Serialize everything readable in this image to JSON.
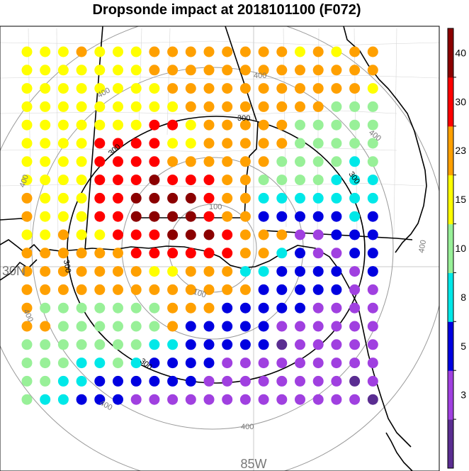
{
  "chart_data": {
    "type": "heatmap",
    "title": "Dropsonde impact at 2018101100 (F072)",
    "grid_columns": 20,
    "grid_rows": 20,
    "levels": [
      "3",
      "5",
      "8",
      "10",
      "15",
      "23",
      "30",
      "40"
    ],
    "colorbar_colors": [
      "#5a2d91",
      "#a040e0",
      "#0000e0",
      "#00e8e8",
      "#98f098",
      "#ffff00",
      "#ffa000",
      "#ff0000",
      "#8b0000"
    ],
    "distance_contours": [
      "100",
      "200",
      "300",
      "400"
    ],
    "highlighted_contour": "300",
    "axis_labels": {
      "lon": "85W",
      "lat": "30N"
    },
    "values": [
      [
        5,
        5,
        5,
        6,
        5,
        5,
        5,
        6,
        6,
        6,
        6,
        6,
        6,
        6,
        6,
        5,
        6,
        5,
        6,
        6
      ],
      [
        5,
        5,
        5,
        5,
        5,
        5,
        5,
        6,
        6,
        6,
        6,
        6,
        6,
        6,
        6,
        6,
        6,
        6,
        6,
        6
      ],
      [
        5,
        5,
        5,
        5,
        5,
        5,
        5,
        5,
        6,
        6,
        6,
        6,
        6,
        6,
        6,
        6,
        6,
        6,
        6,
        5
      ],
      [
        5,
        5,
        5,
        5,
        5,
        5,
        5,
        5,
        5,
        6,
        6,
        6,
        6,
        6,
        6,
        6,
        6,
        4,
        4,
        4
      ],
      [
        5,
        5,
        5,
        5,
        5,
        5,
        5,
        7,
        7,
        5,
        6,
        6,
        6,
        6,
        6,
        4,
        4,
        4,
        4,
        4
      ],
      [
        5,
        5,
        5,
        5,
        7,
        7,
        7,
        7,
        5,
        5,
        6,
        6,
        6,
        6,
        6,
        4,
        4,
        4,
        4,
        4
      ],
      [
        5,
        5,
        5,
        5,
        7,
        7,
        7,
        7,
        6,
        6,
        6,
        6,
        6,
        6,
        4,
        4,
        4,
        4,
        3,
        4
      ],
      [
        5,
        5,
        5,
        5,
        7,
        7,
        7,
        8,
        7,
        7,
        7,
        6,
        6,
        4,
        4,
        4,
        4,
        3,
        3,
        3
      ],
      [
        6,
        5,
        5,
        5,
        7,
        7,
        8,
        8,
        8,
        8,
        7,
        6,
        6,
        3,
        3,
        3,
        3,
        3,
        3,
        3
      ],
      [
        6,
        5,
        5,
        5,
        7,
        7,
        8,
        8,
        8,
        8,
        7,
        6,
        6,
        2,
        2,
        2,
        2,
        2,
        3,
        2
      ],
      [
        5,
        5,
        6,
        5,
        5,
        7,
        7,
        7,
        8,
        8,
        8,
        7,
        6,
        6,
        6,
        1,
        1,
        2,
        2,
        2
      ],
      [
        6,
        6,
        6,
        6,
        6,
        6,
        7,
        7,
        7,
        7,
        7,
        7,
        6,
        6,
        3,
        2,
        1,
        1,
        2,
        2
      ],
      [
        6,
        6,
        6,
        6,
        6,
        6,
        6,
        5,
        5,
        6,
        6,
        6,
        3,
        3,
        2,
        2,
        2,
        2,
        1,
        2
      ],
      [
        6,
        6,
        6,
        6,
        6,
        6,
        6,
        6,
        6,
        6,
        6,
        6,
        6,
        2,
        2,
        2,
        2,
        2,
        1,
        1
      ],
      [
        6,
        4,
        4,
        4,
        4,
        4,
        4,
        4,
        6,
        6,
        6,
        2,
        2,
        2,
        2,
        2,
        1,
        1,
        1,
        1
      ],
      [
        6,
        6,
        4,
        4,
        4,
        4,
        4,
        4,
        6,
        2,
        2,
        2,
        2,
        2,
        1,
        1,
        1,
        1,
        1,
        1
      ],
      [
        4,
        4,
        4,
        4,
        4,
        4,
        4,
        3,
        3,
        2,
        2,
        2,
        2,
        2,
        0,
        1,
        1,
        1,
        1,
        1
      ],
      [
        4,
        4,
        4,
        3,
        3,
        4,
        3,
        2,
        2,
        2,
        2,
        1,
        1,
        1,
        1,
        1,
        1,
        1,
        1,
        1
      ],
      [
        4,
        4,
        3,
        3,
        2,
        2,
        2,
        2,
        2,
        2,
        1,
        1,
        1,
        1,
        1,
        1,
        1,
        1,
        0,
        1
      ],
      [
        4,
        3,
        3,
        2,
        2,
        2,
        1,
        1,
        1,
        1,
        1,
        1,
        1,
        1,
        1,
        1,
        1,
        1,
        1,
        0
      ]
    ]
  }
}
